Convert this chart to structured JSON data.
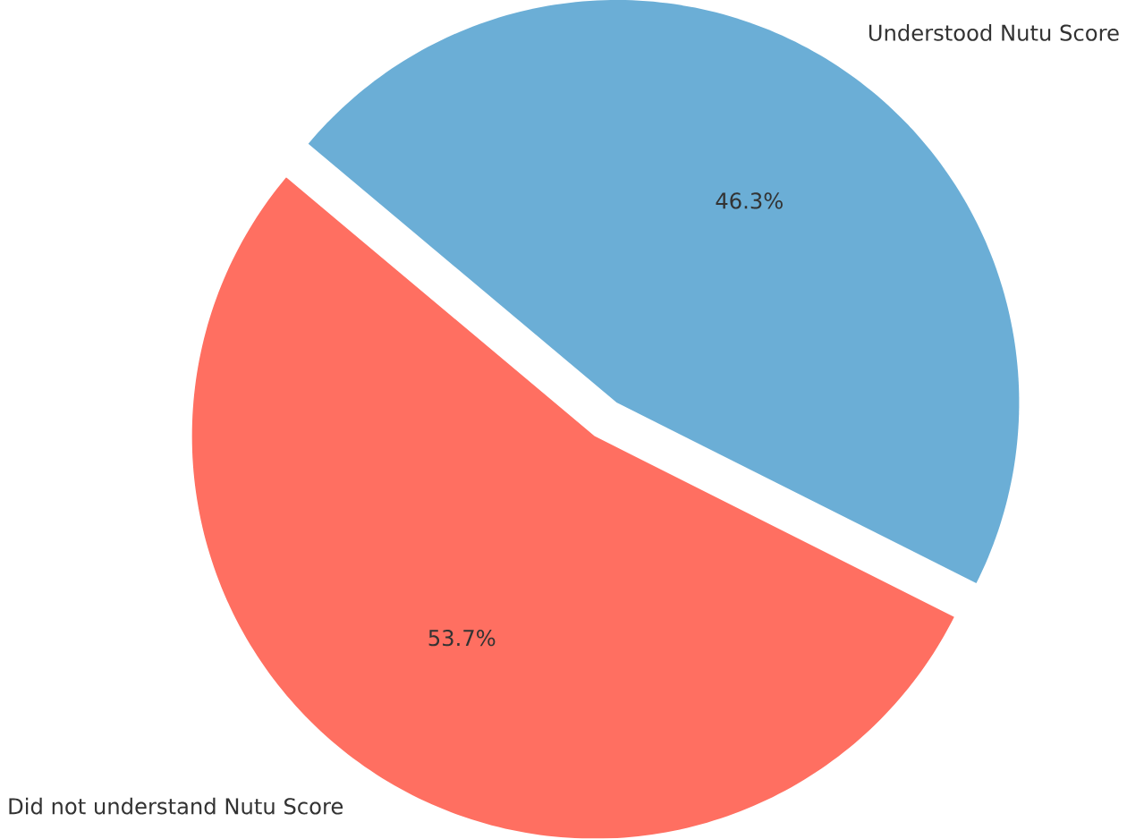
{
  "chart_data": {
    "type": "pie",
    "categories": [
      "Did not understand Nutu Score",
      "Understood Nutu Score"
    ],
    "values": [
      53.7,
      46.3
    ],
    "colors": [
      "#ff6f61",
      "#6baed6"
    ],
    "value_labels": [
      "53.7%",
      "46.3%"
    ]
  }
}
